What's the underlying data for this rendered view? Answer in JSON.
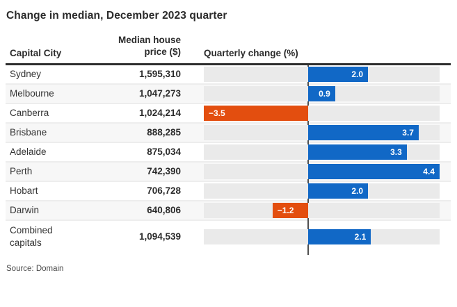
{
  "title": "Change in median, December 2023 quarter",
  "source": "Source: Domain",
  "header": {
    "capital_city": "Capital City",
    "price_line1": "Median house",
    "price_line2": "price ($)",
    "quarterly_change": "Quarterly change (%)"
  },
  "colors": {
    "positive": "#1168c6",
    "negative": "#e34e0f",
    "track": "#eaeaea",
    "baseline": "#4f4f4f",
    "alt_row": "#f7f7f7"
  },
  "rows": [
    {
      "city": "Sydney",
      "price": "1,595,310",
      "change": 2.0,
      "change_label": "2.0"
    },
    {
      "city": "Melbourne",
      "price": "1,047,273",
      "change": 0.9,
      "change_label": "0.9"
    },
    {
      "city": "Canberra",
      "price": "1,024,214",
      "change": -3.5,
      "change_label": "−3.5"
    },
    {
      "city": "Brisbane",
      "price": "888,285",
      "change": 3.7,
      "change_label": "3.7"
    },
    {
      "city": "Adelaide",
      "price": "875,034",
      "change": 3.3,
      "change_label": "3.3"
    },
    {
      "city": "Perth",
      "price": "742,390",
      "change": 4.4,
      "change_label": "4.4"
    },
    {
      "city": "Hobart",
      "price": "706,728",
      "change": 2.0,
      "change_label": "2.0"
    },
    {
      "city": "Darwin",
      "price": "640,806",
      "change": -1.2,
      "change_label": "−1.2"
    },
    {
      "city": "Combined\ncapitals",
      "price": "1,094,539",
      "change": 2.1,
      "change_label": "2.1"
    }
  ],
  "chart_data": {
    "type": "bar",
    "orientation": "horizontal",
    "title": "Change in median, December 2023 quarter",
    "categories": [
      "Sydney",
      "Melbourne",
      "Canberra",
      "Brisbane",
      "Adelaide",
      "Perth",
      "Hobart",
      "Darwin",
      "Combined capitals"
    ],
    "series": [
      {
        "name": "Median house price ($)",
        "values": [
          1595310,
          1047273,
          1024214,
          888285,
          875034,
          742390,
          706728,
          640806,
          1094539
        ]
      },
      {
        "name": "Quarterly change (%)",
        "values": [
          2.0,
          0.9,
          -3.5,
          3.7,
          3.3,
          4.4,
          2.0,
          -1.2,
          2.1
        ]
      }
    ],
    "xlim": [
      -3.5,
      4.4
    ],
    "zero_baseline": true,
    "legend": false,
    "grid": false,
    "bar_colors": {
      "positive": "#1168c6",
      "negative": "#e34e0f"
    },
    "source": "Source: Domain"
  }
}
